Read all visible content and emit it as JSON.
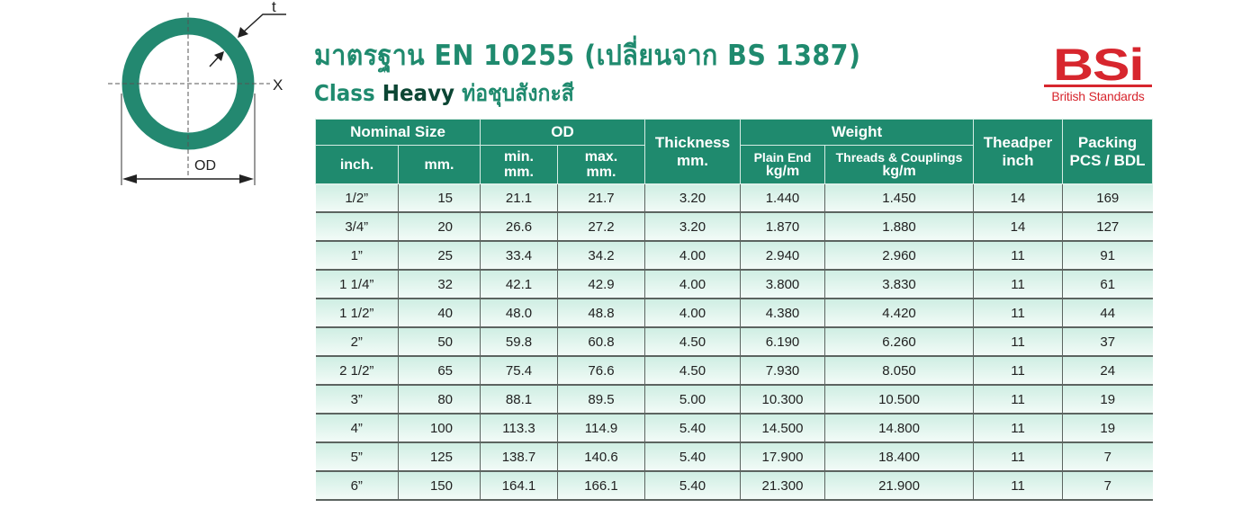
{
  "diagram": {
    "thickness_label": "t",
    "axis_label": "X",
    "od_label": "OD",
    "ring_color": "#238870"
  },
  "title": "มาตรฐาน EN 10255 (เปลี่ยนจาก BS 1387)",
  "subtitle": {
    "class_word": "Class",
    "heavy_word": "Heavy",
    "thai": "ท่อชุบสังกะสี"
  },
  "logo": {
    "mark": "BSi",
    "text": "British Standards",
    "color": "#d7262e"
  },
  "table": {
    "header_color": "#1f8a6e",
    "groups": {
      "nominal": "Nominal Size",
      "od": "OD",
      "thickness": "Thickness",
      "weight": "Weight",
      "theadper": "Theadper",
      "packing": "Packing"
    },
    "sub": {
      "inch": "inch.",
      "mm": "mm.",
      "min": "min.",
      "min_unit": "mm.",
      "max": "max.",
      "max_unit": "mm.",
      "thickness_unit": "mm.",
      "plain": "Plain End",
      "plain_unit": "kg/m",
      "threads": "Threads & Couplings",
      "threads_unit": "kg/m",
      "theadper_unit": "inch",
      "packing_unit": "PCS / BDL"
    },
    "rows": [
      [
        "1/2”",
        "15",
        "21.1",
        "21.7",
        "3.20",
        "1.440",
        "1.450",
        "14",
        "169"
      ],
      [
        "3/4”",
        "20",
        "26.6",
        "27.2",
        "3.20",
        "1.870",
        "1.880",
        "14",
        "127"
      ],
      [
        "1”",
        "25",
        "33.4",
        "34.2",
        "4.00",
        "2.940",
        "2.960",
        "11",
        "91"
      ],
      [
        "1 1/4”",
        "32",
        "42.1",
        "42.9",
        "4.00",
        "3.800",
        "3.830",
        "11",
        "61"
      ],
      [
        "1 1/2”",
        "40",
        "48.0",
        "48.8",
        "4.00",
        "4.380",
        "4.420",
        "11",
        "44"
      ],
      [
        "2”",
        "50",
        "59.8",
        "60.8",
        "4.50",
        "6.190",
        "6.260",
        "11",
        "37"
      ],
      [
        "2 1/2”",
        "65",
        "75.4",
        "76.6",
        "4.50",
        "7.930",
        "8.050",
        "11",
        "24"
      ],
      [
        "3”",
        "80",
        "88.1",
        "89.5",
        "5.00",
        "10.300",
        "10.500",
        "11",
        "19"
      ],
      [
        "4”",
        "100",
        "113.3",
        "114.9",
        "5.40",
        "14.500",
        "14.800",
        "11",
        "19"
      ],
      [
        "5”",
        "125",
        "138.7",
        "140.6",
        "5.40",
        "17.900",
        "18.400",
        "11",
        "7"
      ],
      [
        "6”",
        "150",
        "164.1",
        "166.1",
        "5.40",
        "21.300",
        "21.900",
        "11",
        "7"
      ]
    ]
  }
}
